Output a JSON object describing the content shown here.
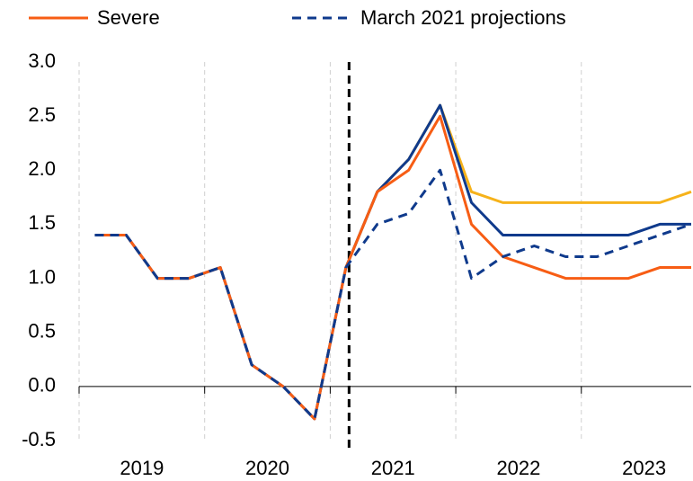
{
  "chart_data": {
    "type": "line",
    "x": [
      2019.125,
      2019.375,
      2019.625,
      2019.875,
      2020.125,
      2020.375,
      2020.625,
      2020.875,
      2021.125,
      2021.375,
      2021.625,
      2021.875,
      2022.125,
      2022.375,
      2022.625,
      2022.875,
      2023.125,
      2023.375,
      2023.625,
      2023.875
    ],
    "series": [
      {
        "color": "#f6b21a",
        "dash": false,
        "values": [
          null,
          null,
          null,
          null,
          null,
          null,
          null,
          null,
          1.1,
          1.8,
          2.1,
          2.6,
          1.8,
          1.7,
          1.7,
          1.7,
          1.7,
          1.7,
          1.7,
          1.8
        ]
      },
      {
        "color": "#0f3a8c",
        "dash": false,
        "values": [
          1.4,
          1.4,
          1.0,
          1.0,
          1.1,
          0.2,
          0.0,
          -0.3,
          1.1,
          1.8,
          2.1,
          2.6,
          1.7,
          1.4,
          1.4,
          1.4,
          1.4,
          1.4,
          1.5,
          1.5
        ]
      },
      {
        "name": "Severe",
        "color": "#f75d14",
        "dash": false,
        "values": [
          1.4,
          1.4,
          1.0,
          1.0,
          1.1,
          0.2,
          0.0,
          -0.3,
          1.1,
          1.8,
          2.0,
          2.5,
          1.5,
          1.2,
          1.1,
          1.0,
          1.0,
          1.0,
          1.1,
          1.1
        ]
      },
      {
        "name": "March 2021 projections",
        "color": "#0f3a8c",
        "dash": true,
        "values": [
          1.4,
          1.4,
          1.0,
          1.0,
          1.1,
          0.2,
          0.0,
          -0.3,
          1.1,
          1.5,
          1.6,
          2.0,
          1.0,
          1.2,
          1.3,
          1.2,
          1.2,
          1.3,
          1.4,
          1.5
        ]
      }
    ],
    "xlim": [
      2019,
      2023.875
    ],
    "xticks": [
      2019,
      2020,
      2021,
      2022,
      2023
    ],
    "ylim": [
      -0.5,
      3.0
    ],
    "yticks": [
      {
        "value": -0.5,
        "label": "-0.5"
      },
      {
        "value": 0,
        "label": "0.0"
      },
      {
        "value": 0.5,
        "label": "0.5"
      },
      {
        "value": 1,
        "label": "1.0"
      },
      {
        "value": 1.5,
        "label": "1.5"
      },
      {
        "value": 2,
        "label": "2.0"
      },
      {
        "value": 2.5,
        "label": "2.5"
      },
      {
        "value": 3,
        "label": "3.0"
      }
    ],
    "vline": 2021.15,
    "grid": true
  }
}
